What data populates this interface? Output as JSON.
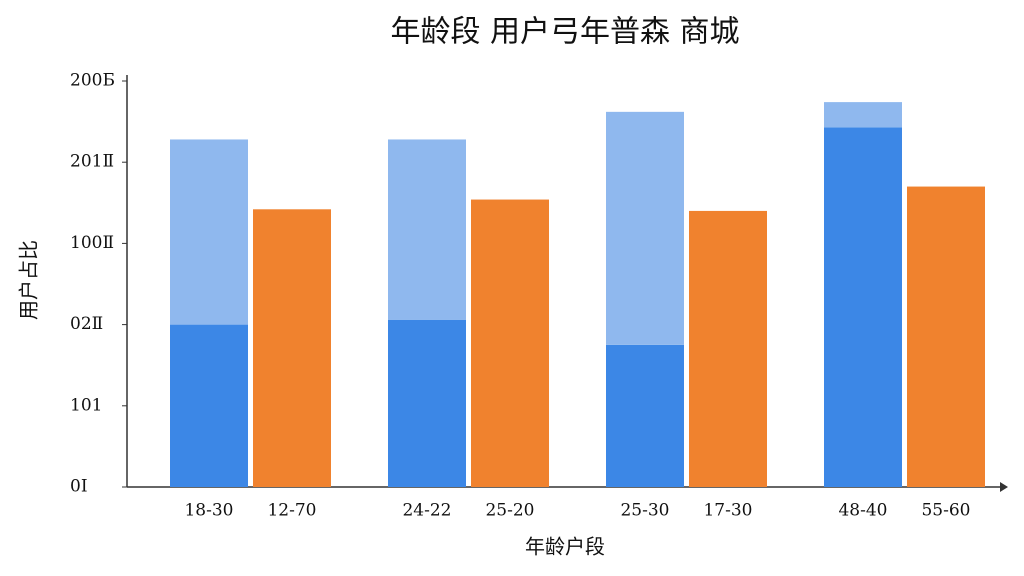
{
  "chart_data": {
    "type": "bar",
    "stacked": true,
    "title": "年龄段 用户弓年普森 商城",
    "x_label": "年龄户段",
    "y_label": "用户占比",
    "categories": [
      "18-30",
      "12-70",
      "24-22",
      "25-20",
      "25-30",
      "17-30",
      "48-40",
      "55-60"
    ],
    "series": [
      {
        "color": "#3c87e6",
        "values": [
          2.0,
          null,
          2.06,
          null,
          1.75,
          null,
          4.43,
          null
        ]
      },
      {
        "color": "#8fb8ee",
        "values": [
          2.28,
          null,
          2.22,
          null,
          2.87,
          null,
          0.31,
          null
        ]
      },
      {
        "color": "#f0822e",
        "values": [
          null,
          3.42,
          null,
          3.54,
          null,
          3.4,
          null,
          3.7
        ]
      }
    ],
    "ylim": [
      0,
      5
    ],
    "yticks": [
      {
        "value": 0,
        "label": "0I"
      },
      {
        "value": 1,
        "label": "101"
      },
      {
        "value": 2,
        "label": "02Ⅱ"
      },
      {
        "value": 3,
        "label": "100Ⅱ"
      },
      {
        "value": 4,
        "label": "201Ⅱ"
      },
      {
        "value": 5,
        "label": "200Б"
      }
    ],
    "grid": false
  }
}
